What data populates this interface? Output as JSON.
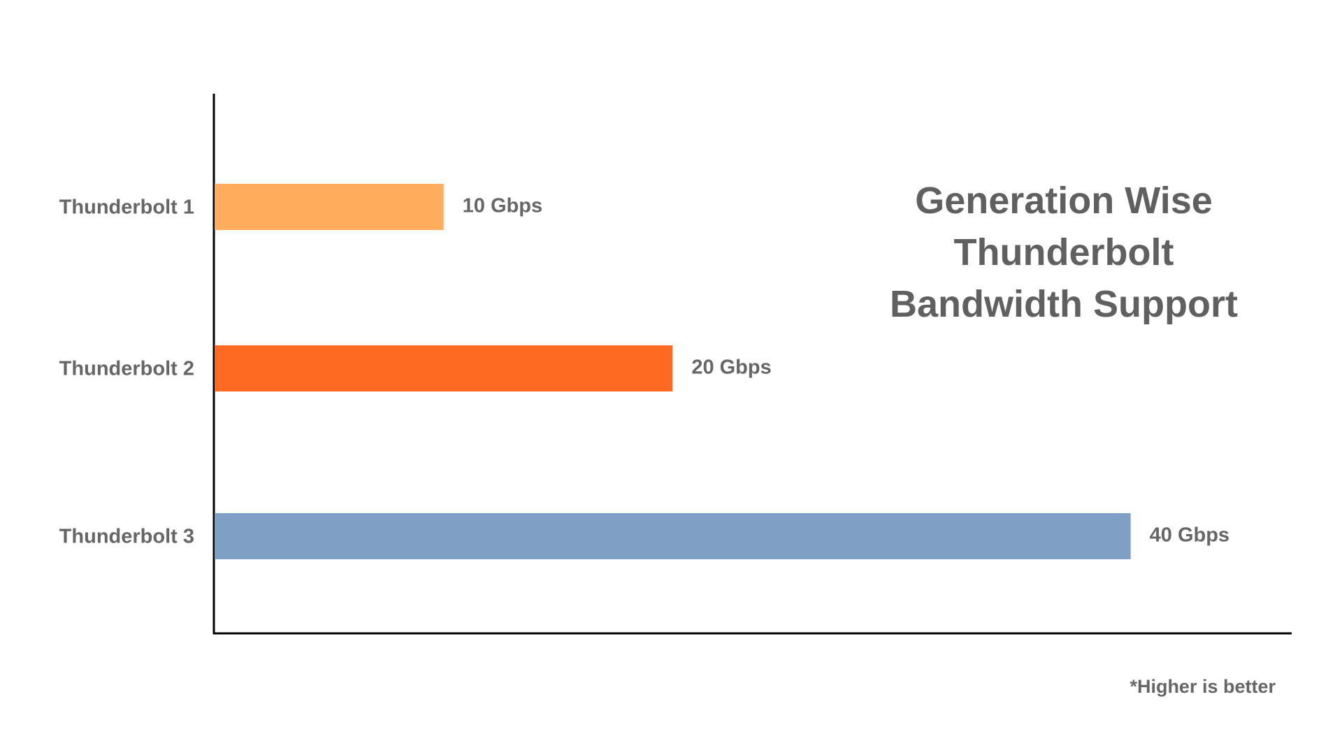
{
  "chart_data": {
    "type": "barh",
    "title": "Generation Wise Thunderbolt Bandwidth Support",
    "categories": [
      "Thunderbolt 1",
      "Thunderbolt 2",
      "Thunderbolt 3"
    ],
    "values": [
      10,
      20,
      40
    ],
    "value_labels": [
      "10 Gbps",
      "20 Gbps",
      "40 Gbps"
    ],
    "colors": [
      "#ffac5c",
      "#ff6a22",
      "#7f9fc4"
    ],
    "xlim": [
      0,
      47
    ],
    "note": "*Higher is better"
  }
}
